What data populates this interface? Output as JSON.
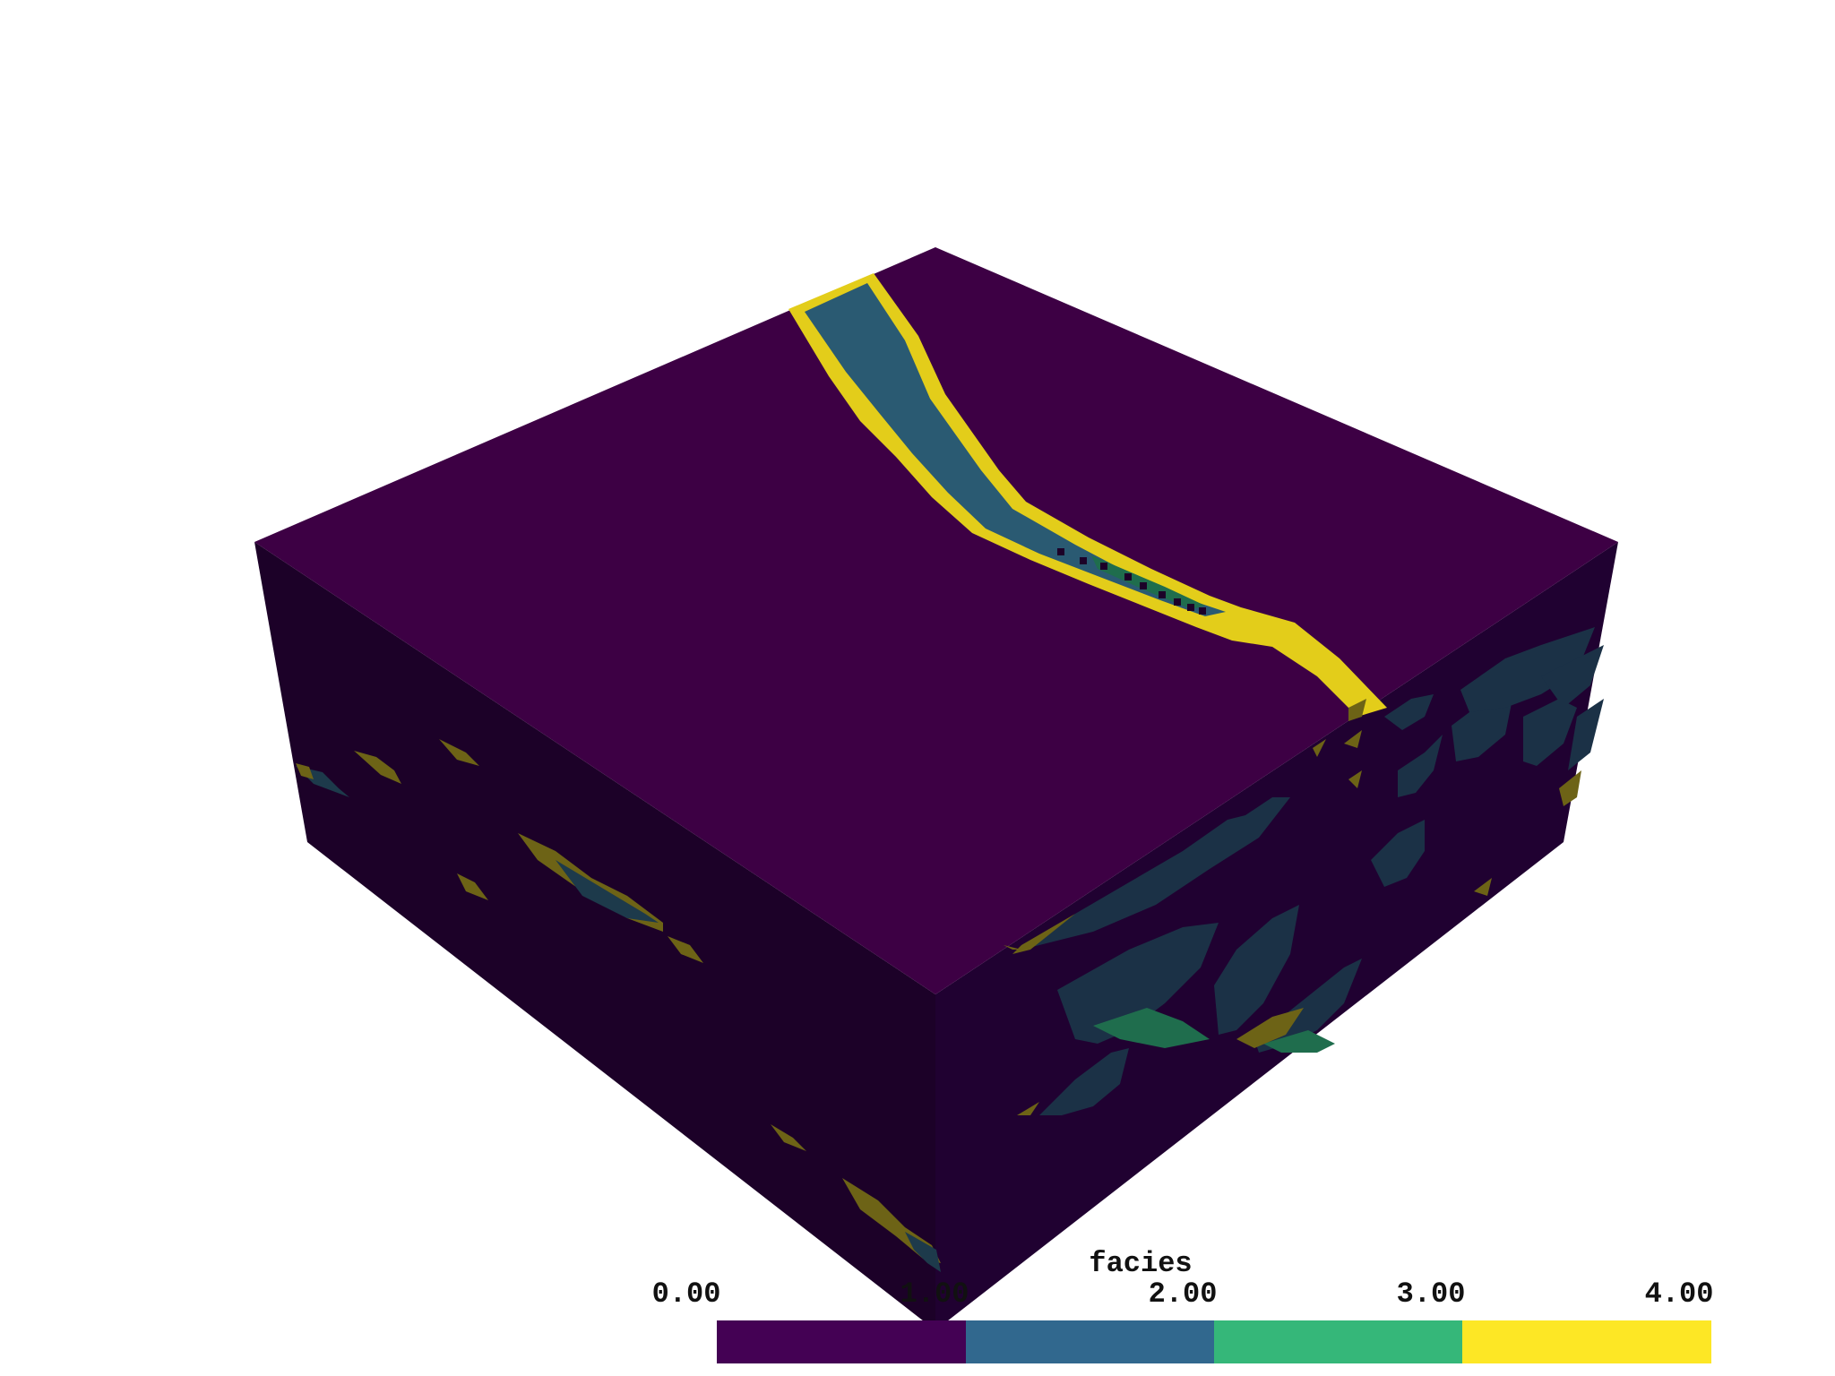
{
  "colorbar": {
    "title": "facies",
    "ticks": [
      "0.00",
      "1.00",
      "2.00",
      "3.00",
      "4.00"
    ],
    "colors": [
      "#440154",
      "#31688e",
      "#35b779",
      "#fde725"
    ]
  },
  "palette": {
    "top_base": "#3d0044",
    "side_base": "#1c0128",
    "side_right_base": "#200131",
    "channel_core": "#2a5a72",
    "channel_edge": "#e3cd1a",
    "side_channel": "#1d3a4b",
    "side_channel_right": "#1b3146",
    "side_edge": "#6d6316",
    "side_green": "#1f6d4d"
  }
}
